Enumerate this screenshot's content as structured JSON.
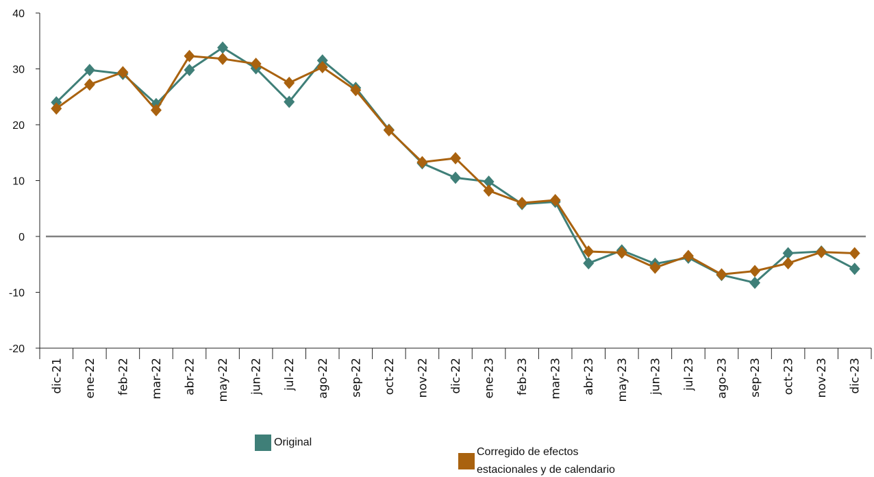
{
  "chart_data": {
    "type": "line",
    "title": "",
    "xlabel": "",
    "ylabel": "",
    "ylim": [
      -20,
      40
    ],
    "yticks": [
      -20,
      -10,
      0,
      10,
      20,
      30,
      40
    ],
    "categories": [
      "dic-21",
      "ene-22",
      "feb-22",
      "mar-22",
      "abr-22",
      "may-22",
      "jun-22",
      "jul-22",
      "ago-22",
      "sep-22",
      "oct-22",
      "nov-22",
      "dic-22",
      "ene-23",
      "feb-23",
      "mar-23",
      "abr-23",
      "may-23",
      "jun-23",
      "jul-23",
      "ago-23",
      "sep-23",
      "oct-23",
      "nov-23",
      "dic-23"
    ],
    "series": [
      {
        "name": "Original",
        "color": "#3f7f78",
        "marker": "diamond",
        "values": [
          24.0,
          29.8,
          29.1,
          23.7,
          29.8,
          33.8,
          30.1,
          24.1,
          31.5,
          26.6,
          19.1,
          13.1,
          10.5,
          9.8,
          5.8,
          6.2,
          -4.8,
          -2.5,
          -4.9,
          -3.8,
          -6.9,
          -8.3,
          -3.0,
          -2.7,
          -5.8
        ]
      },
      {
        "name": "Corregido de efectos estacionales y de calendario",
        "color": "#a9620f",
        "marker": "diamond",
        "values": [
          22.9,
          27.2,
          29.4,
          22.6,
          32.3,
          31.8,
          30.9,
          27.5,
          30.3,
          26.2,
          19.0,
          13.3,
          14.0,
          8.2,
          6.0,
          6.5,
          -2.7,
          -2.9,
          -5.6,
          -3.5,
          -6.8,
          -6.2,
          -4.8,
          -2.8,
          -3.0
        ]
      }
    ],
    "zero_line": true,
    "grid": false,
    "legend_position": "bottom"
  },
  "legend": {
    "items": [
      {
        "label": "Original",
        "color": "#3f7f78"
      },
      {
        "label_line1": "Corregido de efectos",
        "label_line2": "estacionales y de calendario",
        "color": "#a9620f"
      }
    ]
  }
}
